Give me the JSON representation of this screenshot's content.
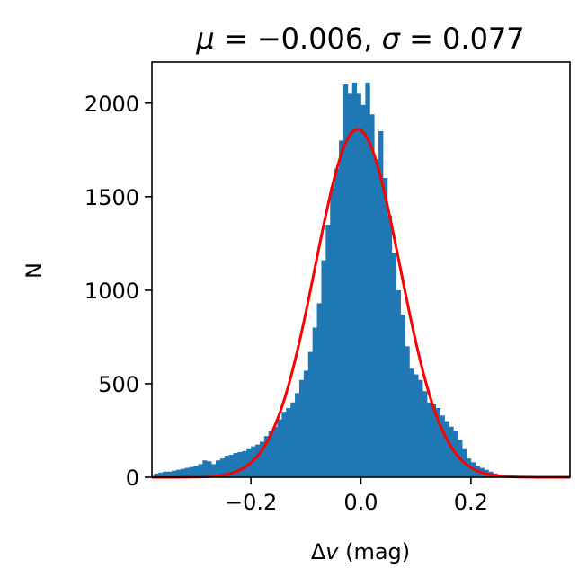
{
  "chart_data": {
    "type": "bar",
    "title": "μ = −0.006, σ = 0.077",
    "title_parts": [
      {
        "text": "μ",
        "style": "italic"
      },
      {
        "text": " = −0.006, ",
        "style": "normal"
      },
      {
        "text": "σ",
        "style": "italic"
      },
      {
        "text": " = 0.077",
        "style": "normal"
      }
    ],
    "xlabel": "Δv (mag)",
    "xlabel_parts": [
      {
        "text": "Δ",
        "style": "normal"
      },
      {
        "text": "v",
        "style": "italic"
      },
      {
        "text": " (mag)",
        "style": "normal"
      }
    ],
    "ylabel": "N",
    "xlim": [
      -0.38,
      0.38
    ],
    "ylim": [
      0,
      2220
    ],
    "xticks": [
      -0.2,
      0.0,
      0.2
    ],
    "xtick_labels": [
      "−0.2",
      "0.0",
      "0.2"
    ],
    "yticks": [
      0,
      500,
      1000,
      1500,
      2000
    ],
    "ytick_labels": [
      "0",
      "500",
      "1000",
      "1500",
      "2000"
    ],
    "grid": false,
    "bar_color": "#1f77b4",
    "fit_color": "#ff0000",
    "bin_width": 0.008,
    "bin_starts": [
      -0.376,
      -0.368,
      -0.36,
      -0.352,
      -0.344,
      -0.336,
      -0.328,
      -0.32,
      -0.312,
      -0.304,
      -0.296,
      -0.288,
      -0.28,
      -0.272,
      -0.264,
      -0.256,
      -0.248,
      -0.24,
      -0.232,
      -0.224,
      -0.216,
      -0.208,
      -0.2,
      -0.192,
      -0.184,
      -0.176,
      -0.168,
      -0.16,
      -0.152,
      -0.144,
      -0.136,
      -0.128,
      -0.12,
      -0.112,
      -0.104,
      -0.096,
      -0.088,
      -0.08,
      -0.072,
      -0.064,
      -0.056,
      -0.048,
      -0.04,
      -0.032,
      -0.024,
      -0.016,
      -0.008,
      0.0,
      0.008,
      0.016,
      0.024,
      0.032,
      0.04,
      0.048,
      0.056,
      0.064,
      0.072,
      0.08,
      0.088,
      0.096,
      0.104,
      0.112,
      0.12,
      0.128,
      0.136,
      0.144,
      0.152,
      0.16,
      0.168,
      0.176,
      0.184,
      0.192,
      0.2,
      0.208,
      0.216,
      0.224,
      0.232,
      0.24,
      0.248,
      0.256,
      0.264,
      0.272,
      0.28,
      0.288,
      0.296,
      0.304,
      0.312,
      0.32,
      0.328,
      0.336,
      0.344,
      0.352,
      0.36,
      0.368
    ],
    "counts": [
      20,
      25,
      30,
      30,
      35,
      40,
      45,
      50,
      55,
      60,
      70,
      90,
      85,
      70,
      90,
      100,
      115,
      120,
      130,
      135,
      140,
      150,
      165,
      175,
      190,
      220,
      250,
      270,
      310,
      350,
      370,
      400,
      450,
      520,
      570,
      670,
      800,
      930,
      1160,
      1350,
      1550,
      1650,
      1800,
      2100,
      2050,
      2110,
      2050,
      1990,
      2110,
      1940,
      1700,
      1850,
      1600,
      1400,
      1200,
      1000,
      870,
      700,
      580,
      550,
      520,
      460,
      400,
      390,
      370,
      330,
      300,
      270,
      250,
      200,
      150,
      100,
      80,
      60,
      50,
      40,
      30,
      20,
      15,
      10,
      8,
      6,
      5,
      4,
      3,
      2,
      2,
      1,
      1,
      1,
      1,
      1,
      1,
      1
    ],
    "fit": {
      "label": "",
      "mu": -0.006,
      "sigma": 0.077,
      "amplitude": 1860
    }
  }
}
